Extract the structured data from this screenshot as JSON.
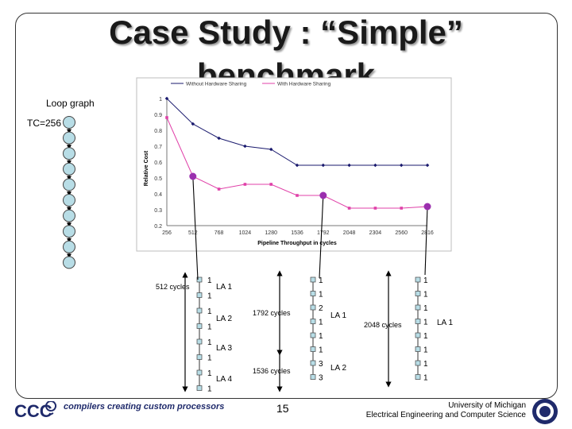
{
  "slide": {
    "title_line1": "Case Study : “Simple”",
    "title_line2": "benchmark",
    "loop_graph_label": "Loop graph",
    "tc_label": "TC=256",
    "page_number": "15",
    "affiliation_line1": "University of Michigan",
    "affiliation_line2": "Electrical Engineering and Computer Science",
    "logo_text": "CCC",
    "tagline": "compilers creating custom processors"
  },
  "colors": {
    "series_without": "#1a1a6e",
    "series_with": "#e040a8",
    "node_fill": "#b8dde6",
    "highlight": "#9b2fae",
    "arrow": "#000000"
  },
  "chart_data": {
    "type": "line",
    "xlabel": "Pipeline Throughput in cycles",
    "ylabel": "Relative Cost",
    "categories": [
      "256",
      "512",
      "768",
      "1024",
      "1280",
      "1536",
      "1792",
      "2048",
      "2304",
      "2560",
      "2816"
    ],
    "ylim": [
      0.2,
      1.0
    ],
    "yticks": [
      "1",
      "0.9",
      "0.8",
      "0.7",
      "0.6",
      "0.5",
      "0.4",
      "0.3",
      "0.2"
    ],
    "legend_position": "top",
    "series": [
      {
        "name": "Without Hardware Sharing",
        "values": [
          1.0,
          0.84,
          0.75,
          0.7,
          0.68,
          0.58,
          0.58,
          0.58,
          0.58,
          0.58,
          0.58
        ]
      },
      {
        "name": "With Hardware Sharing",
        "values": [
          0.88,
          0.51,
          0.43,
          0.46,
          0.46,
          0.39,
          0.39,
          0.31,
          0.31,
          0.31,
          0.32
        ]
      }
    ]
  },
  "schedules": [
    {
      "cycles_label": "512 cycles",
      "nodes": [
        "1",
        "1",
        "1",
        "1",
        "1",
        "1",
        "1",
        "1"
      ],
      "groups": [
        "LA 1",
        "LA 2",
        "LA 3",
        "LA 4"
      ]
    },
    {
      "cycles_label": "1792 cycles",
      "nodes": [
        "1",
        "1",
        "2",
        "1",
        "1",
        "1",
        "3",
        "3"
      ],
      "groups": [
        "LA 1",
        "LA 2"
      ],
      "second_label": "1536 cycles"
    },
    {
      "cycles_label": "2048 cycles",
      "nodes": [
        "1",
        "1",
        "1",
        "1",
        "1",
        "1",
        "1",
        "1"
      ],
      "groups": [
        "LA 1"
      ]
    }
  ]
}
